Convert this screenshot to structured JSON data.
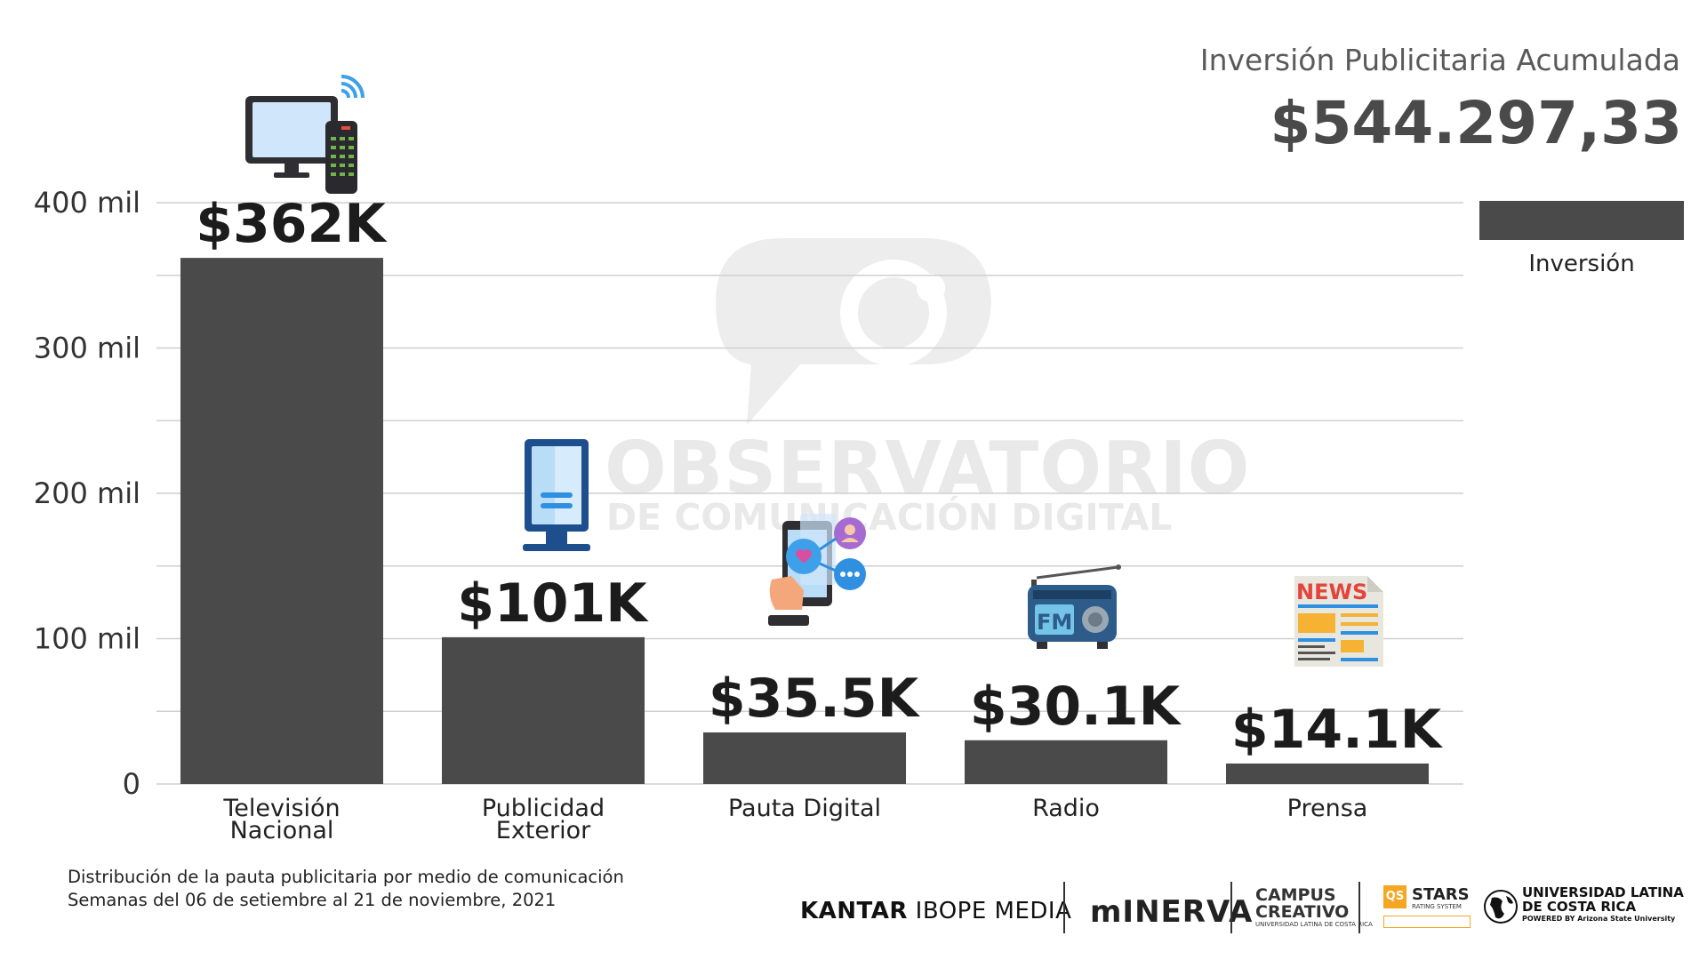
{
  "header": {
    "title": "Inversión Publicitaria Acumulada",
    "total": "$544.297,33"
  },
  "legend": {
    "label": "Inversión",
    "color": "#4a4a4b"
  },
  "watermark": {
    "line1": "OBSERVATORIO",
    "line2": "DE COMUNICACIÓN DIGITAL"
  },
  "footnote": {
    "line1": "Distribución de la pauta publicitaria por medio de comunicación",
    "line2": "Semanas del 06 de setiembre al 21 de noviembre, 2021"
  },
  "logos": {
    "kantar_bold": "KANTAR",
    "kantar_rest": " IBOPE MEDIA",
    "minerva": "mINERVA",
    "campus_line1": "CAMPUS",
    "campus_line2": "CREATIVO",
    "campus_small": "UNIVERSIDAD LATINA DE COSTA RICA",
    "qs_badge": "QS",
    "qs_stars": "STARS",
    "qs_sub": "RATING SYSTEM",
    "ulatina_line1": "UNIVERSIDAD LATINA",
    "ulatina_line2": "DE COSTA RICA",
    "ulatina_small": "POWERED BY Arizona State University"
  },
  "icons": [
    "tv-remote-icon",
    "billboard-icon",
    "smartphone-social-icon",
    "radio-icon",
    "newspaper-icon"
  ],
  "chart_data": {
    "type": "bar",
    "categories": [
      "Televisión Nacional",
      "Publicidad Exterior",
      "Pauta Digital",
      "Radio",
      "Prensa"
    ],
    "category_lines": [
      [
        "Televisión",
        "Nacional"
      ],
      [
        "Publicidad",
        "Exterior"
      ],
      [
        "Pauta Digital"
      ],
      [
        "Radio"
      ],
      [
        "Prensa"
      ]
    ],
    "series": [
      {
        "name": "Inversión",
        "values": [
          362000,
          101000,
          35500,
          30100,
          14100
        ]
      }
    ],
    "data_labels": [
      "$362K",
      "$101K",
      "$35.5K",
      "$30.1K",
      "$14.1K"
    ],
    "yticks": [
      {
        "value": 0,
        "label": "0"
      },
      {
        "value": 100000,
        "label": "100 mil"
      },
      {
        "value": 200000,
        "label": "200 mil"
      },
      {
        "value": 300000,
        "label": "300 mil"
      },
      {
        "value": 400000,
        "label": "400 mil"
      }
    ],
    "ylim": [
      0,
      400000
    ],
    "grid": true,
    "legend_position": "top-right",
    "bar_color": "#4a4a4b",
    "grid_color": "#cfcfcf"
  }
}
